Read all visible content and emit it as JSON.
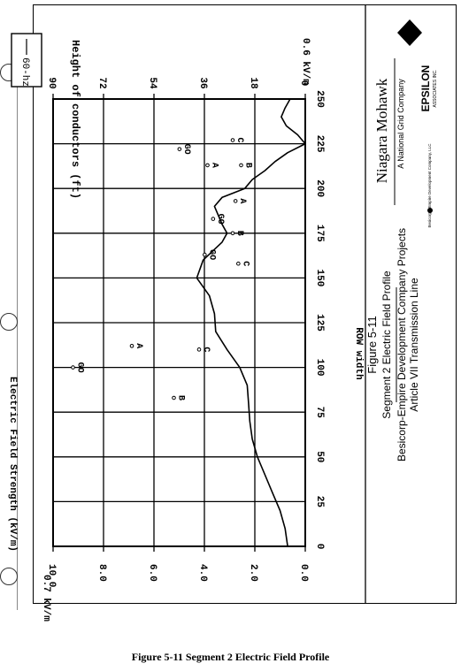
{
  "chart_data": {
    "type": "line",
    "orientation": "rotated-90-ccw",
    "xlabel": "ROW width",
    "ylabel": "Electric Field Strength (kV/m)",
    "y2label": "Height of conductors (ft)",
    "xticks": [
      0,
      25,
      50,
      75,
      100,
      125,
      150,
      175,
      200,
      225,
      250
    ],
    "yticks": [
      0.0,
      2.0,
      4.0,
      6.0,
      8.0,
      10.0
    ],
    "y2ticks": [
      0,
      18,
      36,
      54,
      72,
      90
    ],
    "xlim": [
      0,
      250
    ],
    "ylim": [
      0,
      10
    ],
    "y2lim": [
      0,
      90
    ],
    "grid": true,
    "legend": "60-hz",
    "legend_position": "top-right",
    "left_end_label": "0.7 kV/m",
    "right_end_label": "0.6 kV/m",
    "series": [
      {
        "name": "60-hz",
        "x": [
          0,
          10,
          20,
          30,
          40,
          50,
          60,
          70,
          80,
          90,
          100,
          110,
          120,
          130,
          140,
          150,
          160,
          170,
          175,
          180,
          190,
          195,
          200,
          205,
          210,
          215,
          220,
          225,
          230,
          235,
          240,
          245,
          250
        ],
        "y": [
          0.7,
          0.8,
          1.0,
          1.3,
          1.6,
          1.9,
          2.1,
          2.2,
          2.25,
          2.3,
          2.6,
          3.1,
          3.55,
          3.6,
          3.8,
          4.3,
          4.05,
          3.3,
          3.1,
          3.3,
          3.6,
          3.3,
          2.4,
          2.1,
          1.6,
          1.2,
          0.7,
          0.0,
          0.3,
          0.75,
          0.95,
          0.8,
          0.6
        ]
      }
    ],
    "conductor_labels": [
      {
        "label": "GO",
        "x": 100,
        "height": 81
      },
      {
        "label": "A",
        "x": 112,
        "height": 60
      },
      {
        "label": "B",
        "x": 83,
        "height": 45
      },
      {
        "label": "C",
        "x": 110,
        "height": 36
      },
      {
        "label": "GO",
        "x": 163,
        "height": 34
      },
      {
        "label": "C",
        "x": 158,
        "height": 22
      },
      {
        "label": "GO",
        "x": 183,
        "height": 31
      },
      {
        "label": "B",
        "x": 175,
        "height": 24
      },
      {
        "label": "A",
        "x": 193,
        "height": 23
      },
      {
        "label": "GO",
        "x": 222,
        "height": 43
      },
      {
        "label": "A",
        "x": 213,
        "height": 33
      },
      {
        "label": "C",
        "x": 227,
        "height": 24
      },
      {
        "label": "B",
        "x": 213,
        "height": 21
      }
    ]
  },
  "title_block": {
    "figure": "Figure 5-11",
    "subtitle": "Segment 2 Electric Field Profile",
    "project": "Besicorp-Empire Development Company Projects",
    "line": "Article VII Transmission Line",
    "company": "Niagara Mohawk",
    "company_sub": "A National Grid Company",
    "epsilon": "EPSILON",
    "epsilon_sub": "ASSOCIATES INC.",
    "besicorp": "Besicorp—Empire Development Company, LLC"
  },
  "caption": "Figure 5-11 Segment 2 Electric Field Profile"
}
